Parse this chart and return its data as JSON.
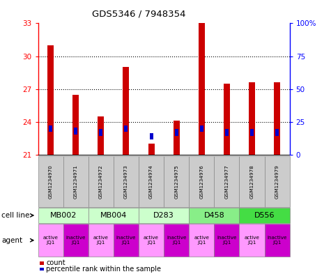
{
  "title": "GDS5346 / 7948354",
  "samples": [
    "GSM1234970",
    "GSM1234971",
    "GSM1234972",
    "GSM1234973",
    "GSM1234974",
    "GSM1234975",
    "GSM1234976",
    "GSM1234977",
    "GSM1234978",
    "GSM1234979"
  ],
  "red_values": [
    31.0,
    26.5,
    24.5,
    29.0,
    22.0,
    24.1,
    33.0,
    27.5,
    27.6,
    27.6
  ],
  "blue_pct": [
    20,
    18,
    17,
    20,
    14,
    17,
    20,
    17,
    17,
    17
  ],
  "ylim_left": [
    21,
    33
  ],
  "ylim_right": [
    0,
    100
  ],
  "yticks_left": [
    21,
    24,
    27,
    30,
    33
  ],
  "yticks_right": [
    0,
    25,
    50,
    75,
    100
  ],
  "cell_lines": [
    {
      "label": "MB002",
      "start": 0,
      "end": 2,
      "color": "#ccffcc"
    },
    {
      "label": "MB004",
      "start": 2,
      "end": 4,
      "color": "#ccffcc"
    },
    {
      "label": "D283",
      "start": 4,
      "end": 6,
      "color": "#ccffcc"
    },
    {
      "label": "D458",
      "start": 6,
      "end": 8,
      "color": "#88ee88"
    },
    {
      "label": "D556",
      "start": 8,
      "end": 10,
      "color": "#44dd44"
    }
  ],
  "agents": [
    "active\nJQ1",
    "inactive\nJQ1",
    "active\nJQ1",
    "inactive\nJQ1",
    "active\nJQ1",
    "inactive\nJQ1",
    "active\nJQ1",
    "inactive\nJQ1",
    "active\nJQ1",
    "inactive\nJQ1"
  ],
  "active_color": "#ff99ff",
  "inactive_color": "#cc00cc",
  "bar_width": 0.25,
  "bar_color_red": "#cc0000",
  "bar_color_blue": "#0000cc",
  "gsm_bg": "#cccccc"
}
